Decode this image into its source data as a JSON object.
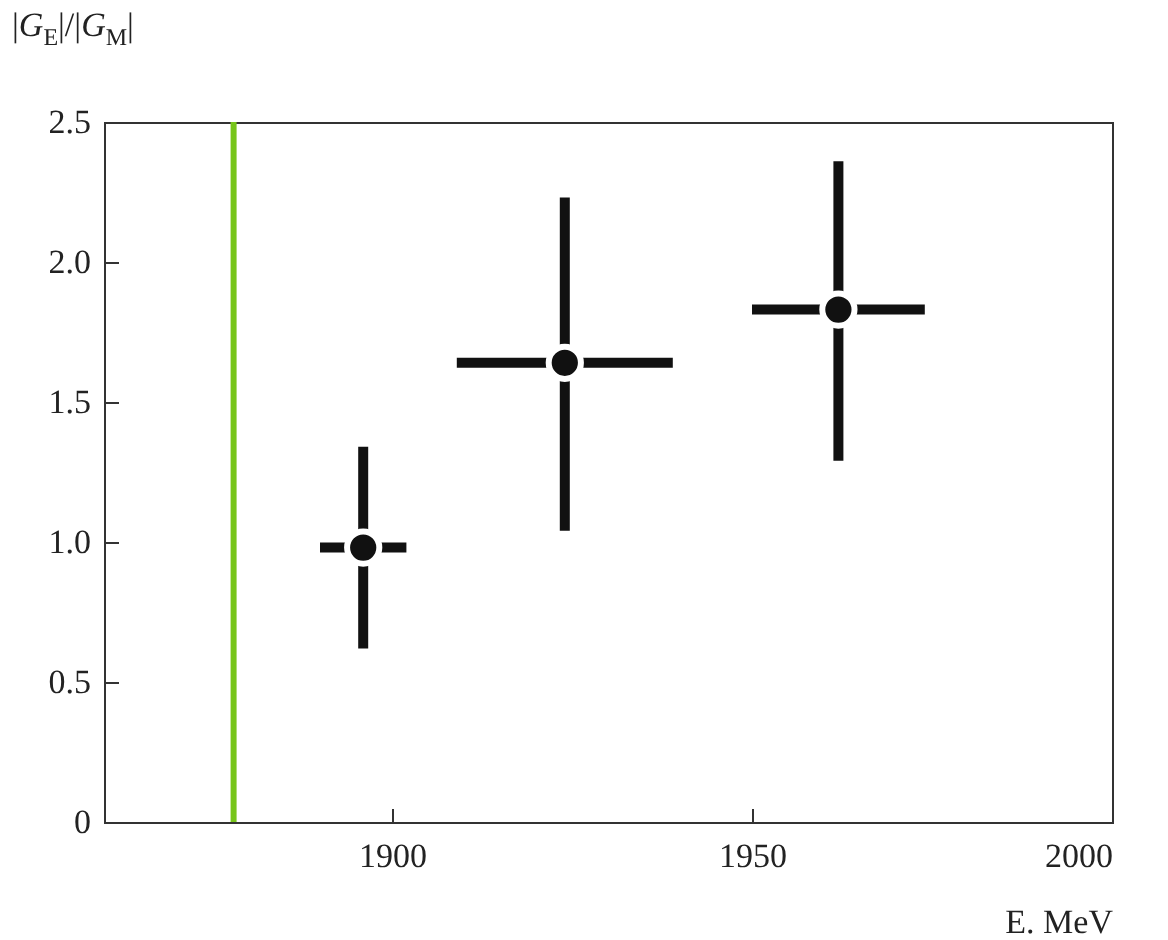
{
  "chart_data": {
    "type": "scatter",
    "xlabel": "E. MeV",
    "ylabel": "|G$_{E}$|/|G$_{M}$|",
    "x": [
      1896,
      1924,
      1962
    ],
    "values": [
      0.98,
      1.64,
      1.83
    ],
    "errors": [
      [
        0.62,
        1.34
      ],
      [
        1.04,
        2.23
      ],
      [
        1.29,
        2.36
      ]
    ],
    "xerrors": [
      [
        1890,
        1902
      ],
      [
        1909,
        1939
      ],
      [
        1950,
        1974
      ]
    ],
    "color": "#111111",
    "marker": "circle",
    "xlim": [
      1860,
      2000
    ],
    "xticks": [
      1900,
      1950,
      2000
    ],
    "ylim": [
      0,
      2.5
    ],
    "yticks": [
      {
        "value": 0,
        "label": "0"
      },
      0.5,
      {
        "value": 1,
        "label": "1.0"
      },
      1.5,
      {
        "value": 2,
        "label": "2.0"
      },
      2.5
    ],
    "ref_lines": [
      {
        "axis": "x",
        "value": 1878,
        "color": "#77c51a"
      }
    ],
    "grid": false
  }
}
